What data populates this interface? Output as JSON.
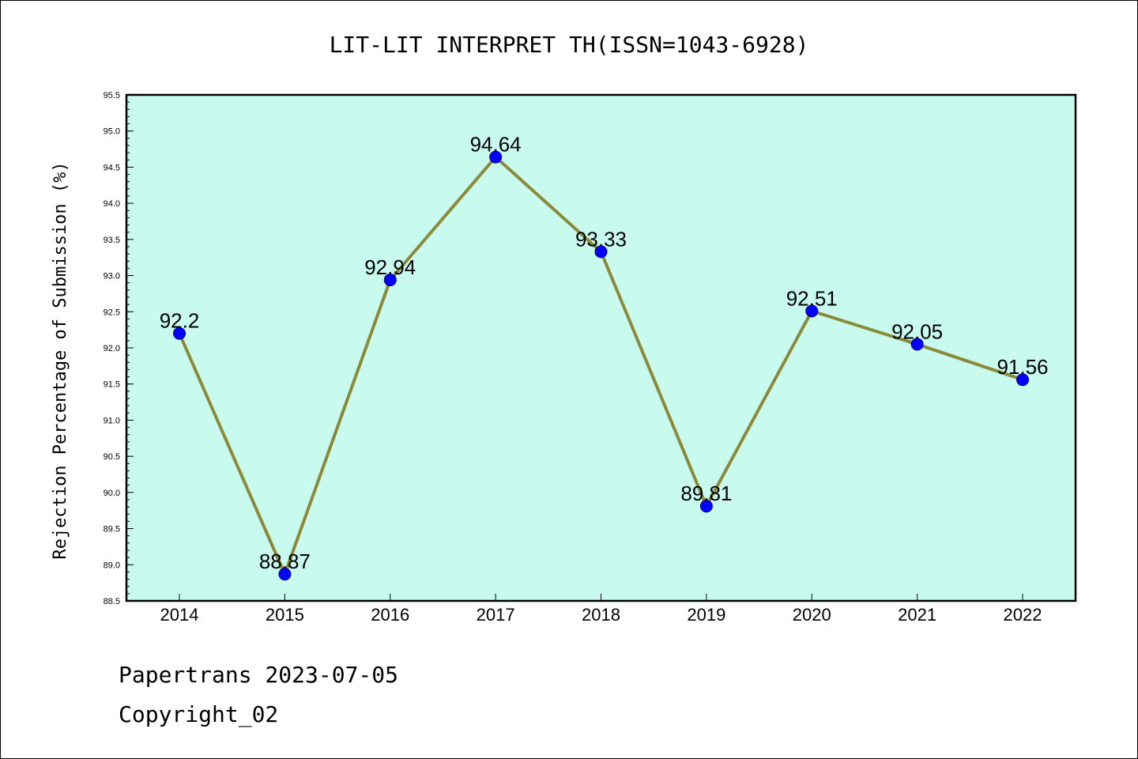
{
  "chart_data": {
    "type": "line",
    "title": "LIT-LIT INTERPRET TH(ISSN=1043-6928)",
    "xlabel": "",
    "ylabel": "Rejection Percentage of Submission (%)",
    "categories": [
      "2014",
      "2015",
      "2016",
      "2017",
      "2018",
      "2019",
      "2020",
      "2021",
      "2022"
    ],
    "values": [
      92.2,
      88.87,
      92.94,
      94.64,
      93.33,
      89.81,
      92.51,
      92.05,
      91.56
    ],
    "data_labels": [
      "92.2",
      "88.87",
      "92.94",
      "94.64",
      "93.33",
      "89.81",
      "92.51",
      "92.05",
      "91.56"
    ],
    "ylim": [
      88.5,
      95.5
    ],
    "yticks": [
      "88.5",
      "89.0",
      "89.5",
      "90.0",
      "90.5",
      "91.0",
      "91.5",
      "92.0",
      "92.5",
      "93.0",
      "93.5",
      "94.0",
      "94.5",
      "95.0",
      "95.5"
    ],
    "grid": false,
    "colors": {
      "plot_background": "#c8faee",
      "line": "#8b8a3a",
      "marker": "#0000ff"
    }
  },
  "footer": {
    "line1": "Papertrans 2023-07-05",
    "line2": "Copyright_02"
  }
}
